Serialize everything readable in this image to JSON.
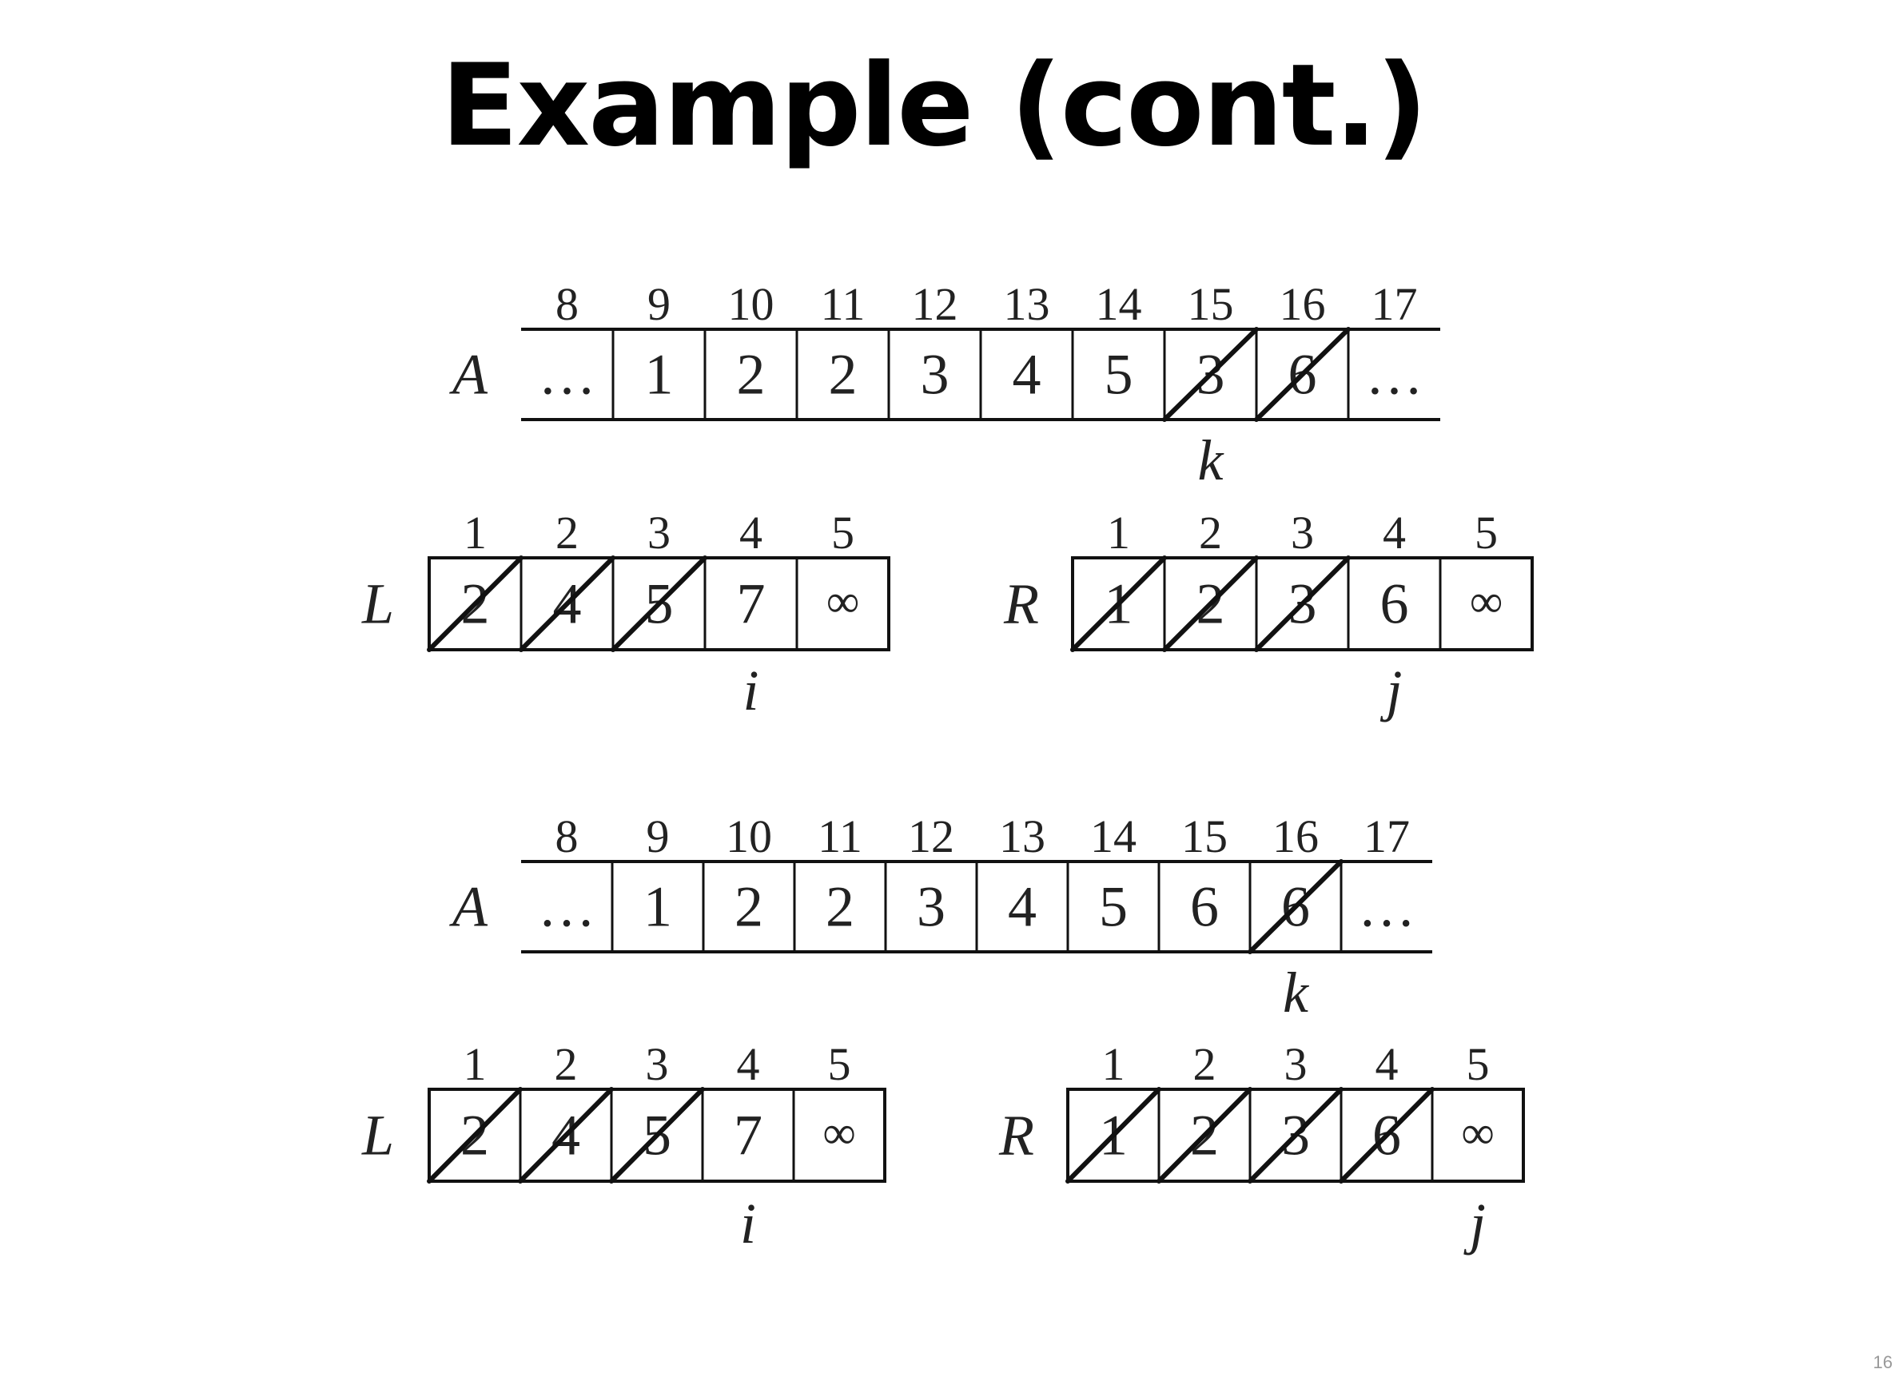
{
  "title": "Example (cont.)",
  "page_number": "16",
  "panels": [
    {
      "A": {
        "name": "A",
        "indices": [
          "8",
          "9",
          "10",
          "11",
          "12",
          "13",
          "14",
          "15",
          "16",
          "17"
        ],
        "cells": [
          {
            "value": "…",
            "crossed": false
          },
          {
            "value": "1",
            "crossed": false
          },
          {
            "value": "2",
            "crossed": false
          },
          {
            "value": "2",
            "crossed": false
          },
          {
            "value": "3",
            "crossed": false
          },
          {
            "value": "4",
            "crossed": false
          },
          {
            "value": "5",
            "crossed": false
          },
          {
            "value": "3",
            "crossed": true
          },
          {
            "value": "6",
            "crossed": true
          },
          {
            "value": "…",
            "crossed": false
          }
        ],
        "pointer": {
          "label": "k",
          "under_index": 7
        }
      },
      "L": {
        "name": "L",
        "indices": [
          "1",
          "2",
          "3",
          "4",
          "5"
        ],
        "cells": [
          {
            "value": "2",
            "crossed": true
          },
          {
            "value": "4",
            "crossed": true
          },
          {
            "value": "5",
            "crossed": true
          },
          {
            "value": "7",
            "crossed": false
          },
          {
            "value": "∞",
            "crossed": false
          }
        ],
        "pointer": {
          "label": "i",
          "under_index": 3
        }
      },
      "R": {
        "name": "R",
        "indices": [
          "1",
          "2",
          "3",
          "4",
          "5"
        ],
        "cells": [
          {
            "value": "1",
            "crossed": true
          },
          {
            "value": "2",
            "crossed": true
          },
          {
            "value": "3",
            "crossed": true
          },
          {
            "value": "6",
            "crossed": false
          },
          {
            "value": "∞",
            "crossed": false
          }
        ],
        "pointer": {
          "label": "j",
          "under_index": 3
        }
      }
    },
    {
      "A": {
        "name": "A",
        "indices": [
          "8",
          "9",
          "10",
          "11",
          "12",
          "13",
          "14",
          "15",
          "16",
          "17"
        ],
        "cells": [
          {
            "value": "…",
            "crossed": false
          },
          {
            "value": "1",
            "crossed": false
          },
          {
            "value": "2",
            "crossed": false
          },
          {
            "value": "2",
            "crossed": false
          },
          {
            "value": "3",
            "crossed": false
          },
          {
            "value": "4",
            "crossed": false
          },
          {
            "value": "5",
            "crossed": false
          },
          {
            "value": "6",
            "crossed": false
          },
          {
            "value": "6",
            "crossed": true
          },
          {
            "value": "…",
            "crossed": false
          }
        ],
        "pointer": {
          "label": "k",
          "under_index": 8
        }
      },
      "L": {
        "name": "L",
        "indices": [
          "1",
          "2",
          "3",
          "4",
          "5"
        ],
        "cells": [
          {
            "value": "2",
            "crossed": true
          },
          {
            "value": "4",
            "crossed": true
          },
          {
            "value": "5",
            "crossed": true
          },
          {
            "value": "7",
            "crossed": false
          },
          {
            "value": "∞",
            "crossed": false
          }
        ],
        "pointer": {
          "label": "i",
          "under_index": 3
        }
      },
      "R": {
        "name": "R",
        "indices": [
          "1",
          "2",
          "3",
          "4",
          "5"
        ],
        "cells": [
          {
            "value": "1",
            "crossed": true
          },
          {
            "value": "2",
            "crossed": true
          },
          {
            "value": "3",
            "crossed": true
          },
          {
            "value": "6",
            "crossed": true
          },
          {
            "value": "∞",
            "crossed": false
          }
        ],
        "pointer": {
          "label": "j",
          "under_index": 4
        }
      }
    }
  ]
}
